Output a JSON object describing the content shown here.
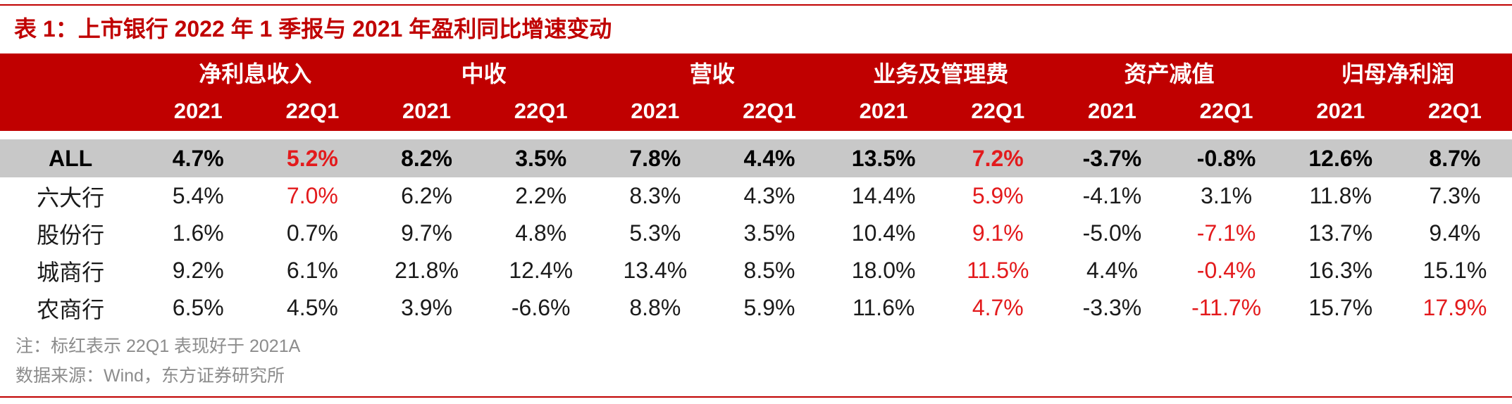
{
  "title": "表 1：上市银行 2022 年 1 季报与 2021 年盈利同比增速变动",
  "colors": {
    "brand_red": "#c00000",
    "highlight_red": "#e31a1c",
    "summary_row_bg": "#c8c8c8",
    "note_gray": "#8c8c8c"
  },
  "table": {
    "groups": [
      "净利息收入",
      "中收",
      "营收",
      "业务及管理费",
      "资产减值",
      "归母净利润"
    ],
    "periods": [
      "2021",
      "22Q1"
    ],
    "rows": [
      {
        "label": "ALL",
        "values": [
          "4.7%",
          "5.2%",
          "8.2%",
          "3.5%",
          "7.8%",
          "4.4%",
          "13.5%",
          "7.2%",
          "-3.7%",
          "-0.8%",
          "12.6%",
          "8.7%"
        ],
        "red": [
          false,
          true,
          false,
          false,
          false,
          false,
          false,
          true,
          false,
          false,
          false,
          false
        ]
      },
      {
        "label": "六大行",
        "values": [
          "5.4%",
          "7.0%",
          "6.2%",
          "2.2%",
          "8.3%",
          "4.3%",
          "14.4%",
          "5.9%",
          "-4.1%",
          "3.1%",
          "11.8%",
          "7.3%"
        ],
        "red": [
          false,
          true,
          false,
          false,
          false,
          false,
          false,
          true,
          false,
          false,
          false,
          false
        ]
      },
      {
        "label": "股份行",
        "values": [
          "1.6%",
          "0.7%",
          "9.7%",
          "4.8%",
          "5.3%",
          "3.5%",
          "10.4%",
          "9.1%",
          "-5.0%",
          "-7.1%",
          "13.7%",
          "9.4%"
        ],
        "red": [
          false,
          false,
          false,
          false,
          false,
          false,
          false,
          true,
          false,
          true,
          false,
          false
        ]
      },
      {
        "label": "城商行",
        "values": [
          "9.2%",
          "6.1%",
          "21.8%",
          "12.4%",
          "13.4%",
          "8.5%",
          "18.0%",
          "11.5%",
          "4.4%",
          "-0.4%",
          "16.3%",
          "15.1%"
        ],
        "red": [
          false,
          false,
          false,
          false,
          false,
          false,
          false,
          true,
          false,
          true,
          false,
          false
        ]
      },
      {
        "label": "农商行",
        "values": [
          "6.5%",
          "4.5%",
          "3.9%",
          "-6.6%",
          "8.8%",
          "5.9%",
          "11.6%",
          "4.7%",
          "-3.3%",
          "-11.7%",
          "15.7%",
          "17.9%"
        ],
        "red": [
          false,
          false,
          false,
          false,
          false,
          false,
          false,
          true,
          false,
          true,
          false,
          true
        ]
      }
    ]
  },
  "note": "注：标红表示 22Q1 表现好于 2021A",
  "source": "数据来源：Wind，东方证券研究所"
}
